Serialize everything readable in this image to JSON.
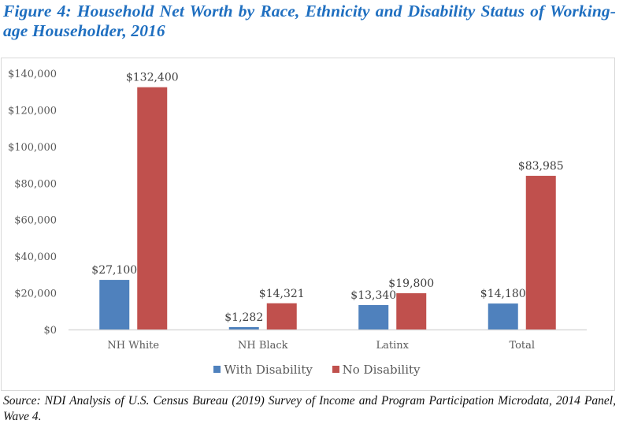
{
  "figure": {
    "title": "Figure 4: Household Net Worth by Race, Ethnicity and Disability Status of Working-age Householder, 2016",
    "source": "Source: NDI Analysis of U.S. Census Bureau (2019) Survey of Income and Program Participation Microdata, 2014 Panel, Wave 4."
  },
  "legend": {
    "items": [
      {
        "label": "With Disability",
        "color": "#4f81bd"
      },
      {
        "label": "No Disability",
        "color": "#c0504d"
      }
    ]
  },
  "chart_data": {
    "type": "bar",
    "title": "Figure 4: Household Net Worth by Race, Ethnicity and Disability Status of Working-age Householder, 2016",
    "xlabel": "",
    "ylabel": "",
    "categories": [
      "NH White",
      "NH Black",
      "Latinx",
      "Total"
    ],
    "series": [
      {
        "name": "With Disability",
        "color": "#4f81bd",
        "values": [
          27100,
          1282,
          13340,
          14180
        ],
        "labels": [
          "$27,100",
          "$1,282",
          "$13,340",
          "$14,180"
        ]
      },
      {
        "name": "No Disability",
        "color": "#c0504d",
        "values": [
          132400,
          14321,
          19800,
          83985
        ],
        "labels": [
          "$132,400",
          "$14,321",
          "$19,800",
          "$83,985"
        ]
      }
    ],
    "ylim": [
      0,
      140000
    ],
    "yticks": [
      0,
      20000,
      40000,
      60000,
      80000,
      100000,
      120000,
      140000
    ],
    "ytick_labels": [
      "$0",
      "$20,000",
      "$40,000",
      "$60,000",
      "$80,000",
      "$100,000",
      "$120,000",
      "$140,000"
    ],
    "grid": false,
    "legend_position": "bottom"
  }
}
